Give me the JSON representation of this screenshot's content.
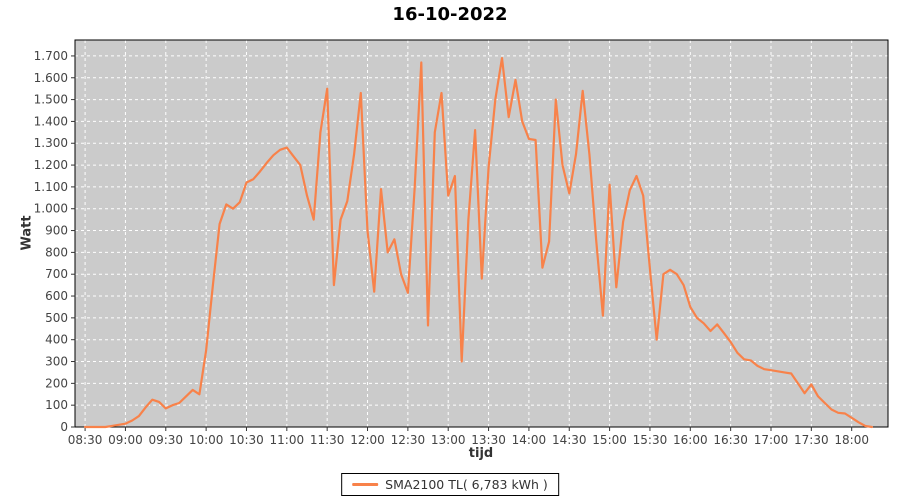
{
  "title": "16-10-2022",
  "axes": {
    "x_label": "tijd",
    "y_label": "Watt"
  },
  "legend": {
    "label": "SMA2100 TL( 6,783 kWh )"
  },
  "colors": {
    "line": "#F8824A",
    "plot_background": "#CBCBCB",
    "gridline": "#FFFFFF",
    "plot_border": "#000000",
    "tick_text": "#444444",
    "axis_title_text": "#333333"
  },
  "chart_data": {
    "type": "line",
    "title": "16-10-2022",
    "xlabel": "tijd",
    "ylabel": "Watt",
    "legend_position": "bottom-center",
    "grid": "white dashed gridlines on gray plot background",
    "x_tick_labels": [
      "08:30",
      "09:00",
      "09:30",
      "10:00",
      "10:30",
      "11:00",
      "11:30",
      "12:00",
      "12:30",
      "13:00",
      "13:30",
      "14:00",
      "14:30",
      "15:00",
      "15:30",
      "16:00",
      "16:30",
      "17:00",
      "17:30",
      "18:00"
    ],
    "y_tick_labels": [
      "0",
      "100",
      "200",
      "300",
      "400",
      "500",
      "600",
      "700",
      "800",
      "900",
      "1.000",
      "1.100",
      "1.200",
      "1.300",
      "1.400",
      "1.500",
      "1.600",
      "1.700"
    ],
    "ylim": [
      0,
      1773
    ],
    "xlim_minutes": [
      502.5,
      1107
    ],
    "series": [
      {
        "name": "SMA2100 TL( 6,783 kWh )",
        "color": "#F8824A",
        "x": [
          "08:30",
          "08:35",
          "08:40",
          "08:45",
          "08:50",
          "08:55",
          "09:00",
          "09:05",
          "09:10",
          "09:15",
          "09:20",
          "09:25",
          "09:30",
          "09:35",
          "09:40",
          "09:45",
          "09:50",
          "09:55",
          "10:00",
          "10:05",
          "10:10",
          "10:15",
          "10:20",
          "10:25",
          "10:30",
          "10:35",
          "10:40",
          "10:45",
          "10:50",
          "10:55",
          "11:00",
          "11:05",
          "11:10",
          "11:15",
          "11:20",
          "11:25",
          "11:30",
          "11:35",
          "11:40",
          "11:45",
          "11:50",
          "11:55",
          "12:00",
          "12:05",
          "12:10",
          "12:15",
          "12:20",
          "12:25",
          "12:30",
          "12:35",
          "12:40",
          "12:45",
          "12:50",
          "12:55",
          "13:00",
          "13:05",
          "13:10",
          "13:15",
          "13:20",
          "13:25",
          "13:30",
          "13:35",
          "13:40",
          "13:45",
          "13:50",
          "13:55",
          "14:00",
          "14:05",
          "14:10",
          "14:15",
          "14:20",
          "14:25",
          "14:30",
          "14:35",
          "14:40",
          "14:45",
          "14:50",
          "14:55",
          "15:00",
          "15:05",
          "15:10",
          "15:15",
          "15:20",
          "15:25",
          "15:30",
          "15:35",
          "15:40",
          "15:45",
          "15:50",
          "15:55",
          "16:00",
          "16:05",
          "16:10",
          "16:15",
          "16:20",
          "16:25",
          "16:30",
          "16:35",
          "16:40",
          "16:45",
          "16:50",
          "16:55",
          "17:00",
          "17:05",
          "17:10",
          "17:15",
          "17:20",
          "17:25",
          "17:30",
          "17:35",
          "17:40",
          "17:45",
          "17:50",
          "17:55",
          "18:00",
          "18:05",
          "18:10",
          "18:15"
        ],
        "values": [
          0,
          0,
          0,
          0,
          5,
          10,
          15,
          30,
          50,
          90,
          125,
          115,
          85,
          100,
          110,
          140,
          170,
          150,
          350,
          650,
          930,
          1020,
          1000,
          1030,
          1120,
          1135,
          1170,
          1210,
          1245,
          1270,
          1280,
          1240,
          1200,
          1060,
          950,
          1350,
          1550,
          650,
          950,
          1035,
          1250,
          1530,
          900,
          620,
          1090,
          800,
          860,
          700,
          615,
          1090,
          1670,
          465,
          1350,
          1530,
          1060,
          1150,
          300,
          950,
          1360,
          680,
          1190,
          1500,
          1690,
          1420,
          1590,
          1400,
          1320,
          1315,
          730,
          850,
          1500,
          1200,
          1070,
          1250,
          1540,
          1250,
          855,
          510,
          1110,
          640,
          940,
          1085,
          1150,
          1060,
          720,
          400,
          700,
          720,
          700,
          650,
          550,
          500,
          475,
          440,
          470,
          430,
          390,
          340,
          310,
          305,
          280,
          265,
          260,
          255,
          250,
          245,
          200,
          155,
          195,
          140,
          110,
          80,
          65,
          62,
          42,
          22,
          5,
          0
        ]
      }
    ]
  }
}
